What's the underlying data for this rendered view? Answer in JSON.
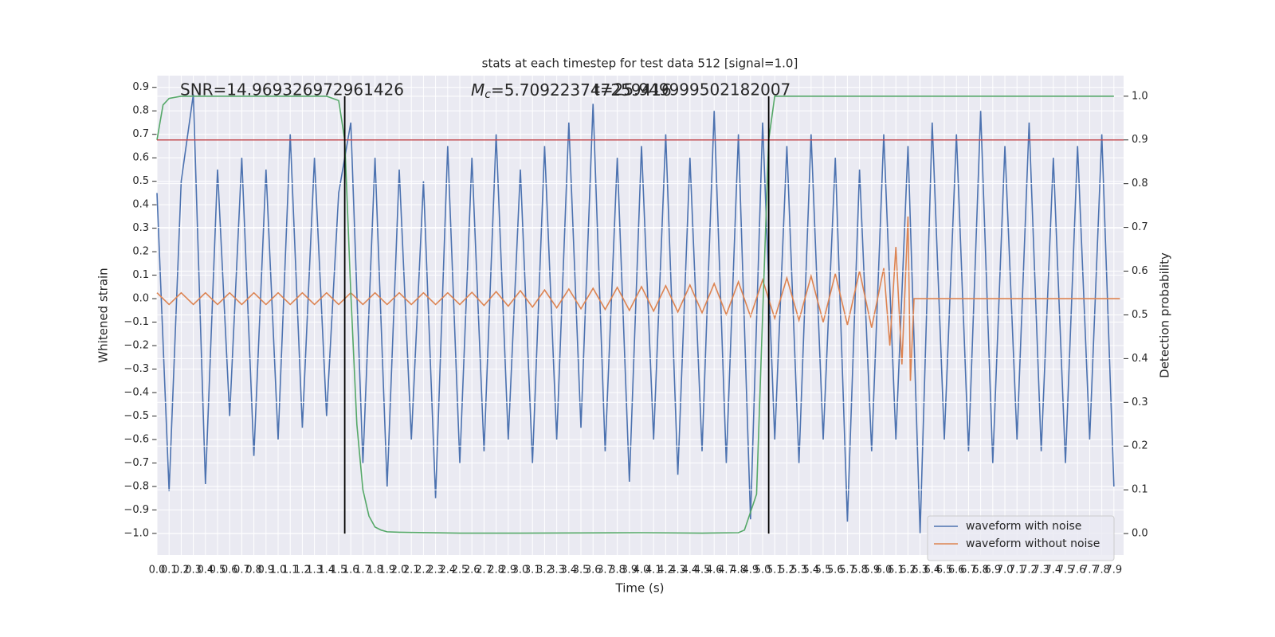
{
  "chart_data": {
    "type": "line",
    "title": "stats at each timestep for test data 512 [signal=1.0]",
    "xlabel": "Time (s)",
    "ylabel": "Whitened strain",
    "y2label": "Detection probability",
    "annotations": {
      "snr": "SNR=14.969326972961426",
      "mc_symbol": "M",
      "mc_sub": "c",
      "mc_value": "=5.709223747259416",
      "t": "t=25.949999502182007"
    },
    "xlim": [
      0,
      7.98
    ],
    "ylim": [
      -1.092,
      0.95
    ],
    "y2lim": [
      -0.049,
      1.047
    ],
    "xticks": [
      {
        "value": 0,
        "label": "0.0"
      },
      0.1,
      0.2,
      0.3,
      0.4,
      0.5,
      0.6,
      0.7,
      0.8,
      0.9,
      {
        "value": 1,
        "label": "1.0"
      },
      1.1,
      1.2,
      1.3,
      1.4,
      1.5,
      1.6,
      1.7,
      1.8,
      1.9,
      {
        "value": 2,
        "label": "2.0"
      },
      2.1,
      2.2,
      2.3,
      2.4,
      2.5,
      2.6,
      2.7,
      2.8,
      2.9,
      {
        "value": 3,
        "label": "3.0"
      },
      3.1,
      3.2,
      3.3,
      3.4,
      3.5,
      3.6,
      3.7,
      3.8,
      3.9,
      {
        "value": 4,
        "label": "4.0"
      },
      4.1,
      4.2,
      4.3,
      4.4,
      4.5,
      4.6,
      4.7,
      4.8,
      4.9,
      {
        "value": 5,
        "label": "5.0"
      },
      5.1,
      5.2,
      5.3,
      5.4,
      5.5,
      5.6,
      5.7,
      5.8,
      5.9,
      {
        "value": 6,
        "label": "6.0"
      },
      6.1,
      6.2,
      6.3,
      6.4,
      6.5,
      6.6,
      6.7,
      6.8,
      6.9,
      {
        "value": 7,
        "label": "7.0"
      },
      7.1,
      7.2,
      7.3,
      7.4,
      7.5,
      7.6,
      7.7,
      7.8,
      7.9
    ],
    "yticks": [
      {
        "value": -1.0,
        "label": "−1.0"
      },
      {
        "value": -0.9,
        "label": "−0.9"
      },
      {
        "value": -0.8,
        "label": "−0.8"
      },
      {
        "value": -0.7,
        "label": "−0.7"
      },
      {
        "value": -0.6,
        "label": "−0.6"
      },
      {
        "value": -0.5,
        "label": "−0.5"
      },
      {
        "value": -0.4,
        "label": "−0.4"
      },
      {
        "value": -0.3,
        "label": "−0.3"
      },
      {
        "value": -0.2,
        "label": "−0.2"
      },
      {
        "value": -0.1,
        "label": "−0.1"
      },
      {
        "value": 0,
        "label": "0.0"
      },
      0.1,
      0.2,
      0.3,
      0.4,
      0.5,
      0.6,
      0.7,
      0.8,
      0.9
    ],
    "y2ticks": [
      {
        "value": 0,
        "label": "0.0"
      },
      0.1,
      0.2,
      0.3,
      0.4,
      0.5,
      0.6,
      0.7,
      0.8,
      0.9,
      {
        "value": 1,
        "label": "1.0"
      }
    ],
    "grid": true,
    "legend": "lower right",
    "series": [
      {
        "name": "waveform with noise",
        "color": "#4c72b0",
        "axis": "y",
        "x": [
          0.0,
          0.1,
          0.2,
          0.3,
          0.4,
          0.5,
          0.6,
          0.7,
          0.8,
          0.9,
          1.0,
          1.1,
          1.2,
          1.3,
          1.4,
          1.5,
          1.6,
          1.7,
          1.8,
          1.9,
          2.0,
          2.1,
          2.2,
          2.3,
          2.4,
          2.5,
          2.6,
          2.7,
          2.8,
          2.9,
          3.0,
          3.1,
          3.2,
          3.3,
          3.4,
          3.5,
          3.6,
          3.7,
          3.8,
          3.9,
          4.0,
          4.1,
          4.2,
          4.3,
          4.4,
          4.5,
          4.6,
          4.7,
          4.8,
          4.9,
          5.0,
          5.1,
          5.2,
          5.3,
          5.4,
          5.5,
          5.6,
          5.7,
          5.8,
          5.9,
          6.0,
          6.1,
          6.2,
          6.3,
          6.4,
          6.5,
          6.6,
          6.7,
          6.8,
          6.9,
          7.0,
          7.1,
          7.2,
          7.3,
          7.4,
          7.5,
          7.6,
          7.7,
          7.8,
          7.9
        ],
        "values": [
          0.45,
          -0.82,
          0.5,
          0.87,
          -0.79,
          0.55,
          -0.5,
          0.6,
          -0.67,
          0.55,
          -0.6,
          0.7,
          -0.55,
          0.6,
          -0.5,
          0.45,
          0.75,
          -0.7,
          0.6,
          -0.8,
          0.55,
          -0.6,
          0.5,
          -0.85,
          0.65,
          -0.7,
          0.6,
          -0.65,
          0.7,
          -0.6,
          0.55,
          -0.7,
          0.65,
          -0.6,
          0.75,
          -0.55,
          0.83,
          -0.65,
          0.6,
          -0.78,
          0.65,
          -0.6,
          0.7,
          -0.75,
          0.6,
          -0.65,
          0.8,
          -0.7,
          0.7,
          -0.94,
          0.75,
          -0.6,
          0.65,
          -0.7,
          0.7,
          -0.6,
          0.6,
          -0.95,
          0.55,
          -0.65,
          0.7,
          -0.6,
          0.65,
          -1.0,
          0.75,
          -0.6,
          0.7,
          -0.65,
          0.8,
          -0.7,
          0.65,
          -0.6,
          0.75,
          -0.65,
          0.6,
          -0.7,
          0.65,
          -0.6,
          0.7,
          -0.8
        ]
      },
      {
        "name": "waveform without noise",
        "color": "#dd8452",
        "axis": "y",
        "x": [
          0.0,
          0.1,
          0.2,
          0.3,
          0.4,
          0.5,
          0.6,
          0.7,
          0.8,
          0.9,
          1.0,
          1.1,
          1.2,
          1.3,
          1.4,
          1.5,
          1.6,
          1.7,
          1.8,
          1.9,
          2.0,
          2.1,
          2.2,
          2.3,
          2.4,
          2.5,
          2.6,
          2.7,
          2.8,
          2.9,
          3.0,
          3.1,
          3.2,
          3.3,
          3.4,
          3.5,
          3.6,
          3.7,
          3.8,
          3.9,
          4.0,
          4.1,
          4.2,
          4.3,
          4.4,
          4.5,
          4.6,
          4.7,
          4.8,
          4.9,
          5.0,
          5.1,
          5.2,
          5.3,
          5.4,
          5.5,
          5.6,
          5.7,
          5.8,
          5.9,
          6.0,
          6.05,
          6.1,
          6.15,
          6.2,
          6.22,
          6.25,
          7.95
        ],
        "values": [
          0.025,
          -0.025,
          0.025,
          -0.025,
          0.025,
          -0.025,
          0.025,
          -0.025,
          0.025,
          -0.025,
          0.025,
          -0.025,
          0.025,
          -0.025,
          0.025,
          -0.025,
          0.025,
          -0.025,
          0.025,
          -0.025,
          0.025,
          -0.025,
          0.025,
          -0.025,
          0.025,
          -0.025,
          0.027,
          -0.029,
          0.03,
          -0.032,
          0.034,
          -0.036,
          0.037,
          -0.039,
          0.041,
          -0.043,
          0.044,
          -0.046,
          0.048,
          -0.05,
          0.051,
          -0.053,
          0.055,
          -0.057,
          0.058,
          -0.06,
          0.064,
          -0.068,
          0.072,
          -0.076,
          0.08,
          -0.084,
          0.088,
          -0.092,
          0.096,
          -0.1,
          0.106,
          -0.112,
          0.118,
          -0.124,
          0.13,
          -0.2,
          0.22,
          -0.28,
          0.35,
          -0.35,
          0.0,
          0.0
        ]
      },
      {
        "color": "#55a868",
        "axis": "y2",
        "x": [
          0.0,
          0.05,
          0.1,
          0.2,
          1.4,
          1.5,
          1.55,
          1.6,
          1.65,
          1.7,
          1.75,
          1.8,
          1.85,
          1.9,
          2.0,
          2.5,
          3.0,
          4.0,
          4.5,
          4.8,
          4.85,
          4.95,
          5.0,
          5.05,
          5.1,
          7.9
        ],
        "values": [
          0.9,
          0.98,
          0.995,
          1.0,
          1.0,
          0.99,
          0.9,
          0.55,
          0.25,
          0.1,
          0.04,
          0.015,
          0.008,
          0.004,
          0.003,
          0.001,
          0.001,
          0.002,
          0.001,
          0.002,
          0.008,
          0.09,
          0.5,
          0.9,
          1.0,
          1.0
        ]
      }
    ],
    "hline": {
      "value": 0.9,
      "axis": "y2",
      "color": "#c44e52"
    },
    "vlines": {
      "x": [
        1.55,
        5.05
      ],
      "range": [
        0,
        1
      ],
      "axis": "y2",
      "color": "#000000"
    }
  }
}
